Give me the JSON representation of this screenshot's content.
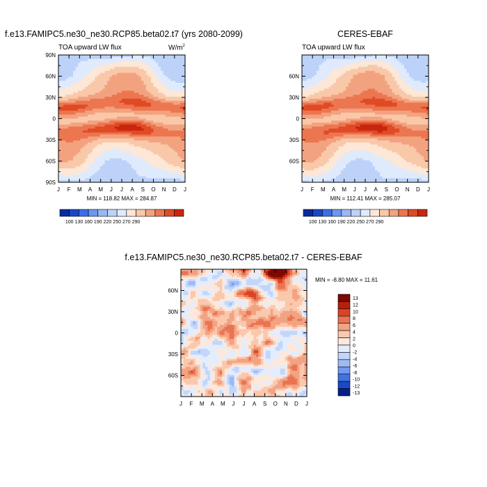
{
  "colors": {
    "abs": [
      "#0a2a9e",
      "#1746c8",
      "#3b6fe4",
      "#6a98ee",
      "#97b8f4",
      "#bcd2f8",
      "#dfeafc",
      "#fde7d6",
      "#f9c8a8",
      "#f3a280",
      "#ec7650",
      "#e04a24",
      "#c7260f",
      "#991103"
    ],
    "diff": [
      "#061f8c",
      "#1a49c9",
      "#3e73e4",
      "#7199ee",
      "#9dbaf4",
      "#c3d6f9",
      "#e3edfd",
      "#fde8db",
      "#fac8ad",
      "#f3a282",
      "#ea7452",
      "#d94424",
      "#b7200c",
      "#7c0a02"
    ]
  },
  "chart_data": [
    {
      "id": "model",
      "type": "heatmap",
      "title": "f.e13.FAMIPC5.ne30_ne30.RCP85.beta02.t7 (yrs 2080-2099)",
      "left_label": "TOA upward LW flux",
      "units": "W/m",
      "units_sup": "2",
      "x_ticks": [
        "J",
        "F",
        "M",
        "A",
        "M",
        "J",
        "J",
        "A",
        "S",
        "O",
        "N",
        "D",
        "J"
      ],
      "y_ticks": [
        "90N",
        "60N",
        "30N",
        "0",
        "30S",
        "60S",
        "90S"
      ],
      "y_values": [
        90,
        60,
        30,
        0,
        -30,
        -60,
        -90
      ],
      "ylim": [
        -90,
        90
      ],
      "minmax_text": "MIN = 118.82  MAX = 284.87",
      "min": 118.82,
      "max": 284.87,
      "colorbar": {
        "orientation": "horizontal",
        "labels": [
          "100",
          "130",
          "160",
          "190",
          "220",
          "250",
          "270",
          "290"
        ]
      }
    },
    {
      "id": "obs",
      "type": "heatmap",
      "title": "CERES-EBAF",
      "left_label": "TOA upward LW flux",
      "x_ticks": [
        "J",
        "F",
        "M",
        "A",
        "M",
        "J",
        "J",
        "A",
        "S",
        "O",
        "N",
        "D",
        "J"
      ],
      "y_ticks": [
        "60N",
        "30N",
        "0",
        "30S",
        "60S"
      ],
      "y_values": [
        60,
        30,
        0,
        -30,
        -60
      ],
      "ylim": [
        -90,
        90
      ],
      "minmax_text": "MIN = 112.41  MAX = 285.07",
      "min": 112.41,
      "max": 285.07,
      "colorbar": {
        "orientation": "horizontal",
        "labels": [
          "100",
          "130",
          "160",
          "190",
          "220",
          "250",
          "270",
          "290"
        ]
      }
    },
    {
      "id": "diff",
      "type": "heatmap",
      "title": "f.e13.FAMIPC5.ne30_ne30.RCP85.beta02.t7 - CERES-EBAF",
      "x_ticks": [
        "J",
        "F",
        "M",
        "A",
        "M",
        "J",
        "J",
        "A",
        "S",
        "O",
        "N",
        "D",
        "J"
      ],
      "y_ticks": [
        "60N",
        "30N",
        "0",
        "30S",
        "60S"
      ],
      "y_values": [
        60,
        30,
        0,
        -30,
        -60
      ],
      "ylim": [
        -90,
        90
      ],
      "minmax_text": "MIN =  -8.80  MAX =  11.61",
      "min": -8.8,
      "max": 11.61,
      "colorbar": {
        "orientation": "vertical",
        "labels": [
          "13",
          "12",
          "10",
          "8",
          "6",
          "4",
          "2",
          "0",
          "-2",
          "-4",
          "-6",
          "-8",
          "-10",
          "-12",
          "-13"
        ]
      }
    }
  ]
}
